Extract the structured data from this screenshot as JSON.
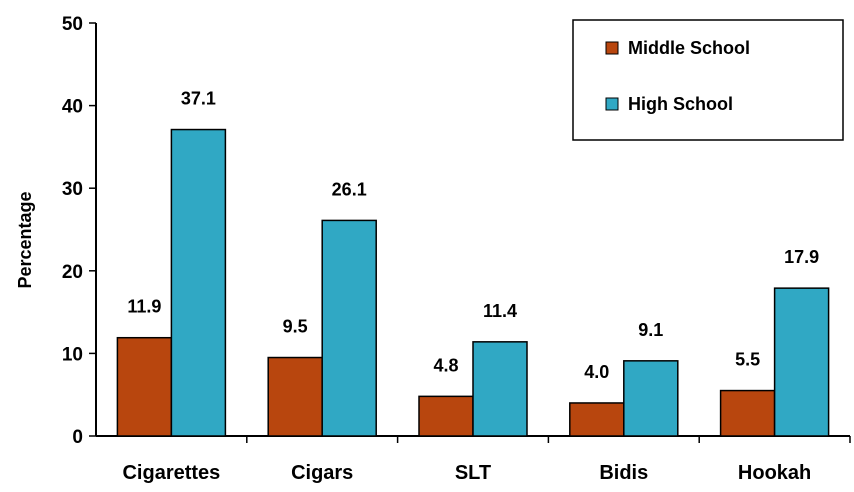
{
  "chart_data": {
    "type": "bar",
    "title": "",
    "xlabel": "",
    "ylabel": "Percentage",
    "ylim": [
      0,
      50
    ],
    "yticks": [
      0,
      10,
      20,
      30,
      40,
      50
    ],
    "categories": [
      "Cigarettes",
      "Cigars",
      "SLT",
      "Bidis",
      "Hookah"
    ],
    "series": [
      {
        "name": "Middle School",
        "color": "#B8460E",
        "values": [
          11.9,
          9.5,
          4.8,
          4.0,
          5.5
        ]
      },
      {
        "name": "High School",
        "color": "#30A8C4",
        "values": [
          37.1,
          26.1,
          11.4,
          9.1,
          17.9
        ]
      }
    ],
    "data_labels": [
      [
        "11.9",
        "9.5",
        "4.8",
        "4.0",
        "5.5"
      ],
      [
        "37.1",
        "26.1",
        "11.4",
        "9.1",
        "17.9"
      ]
    ],
    "legend": {
      "position": "top-right"
    },
    "grid": false
  }
}
